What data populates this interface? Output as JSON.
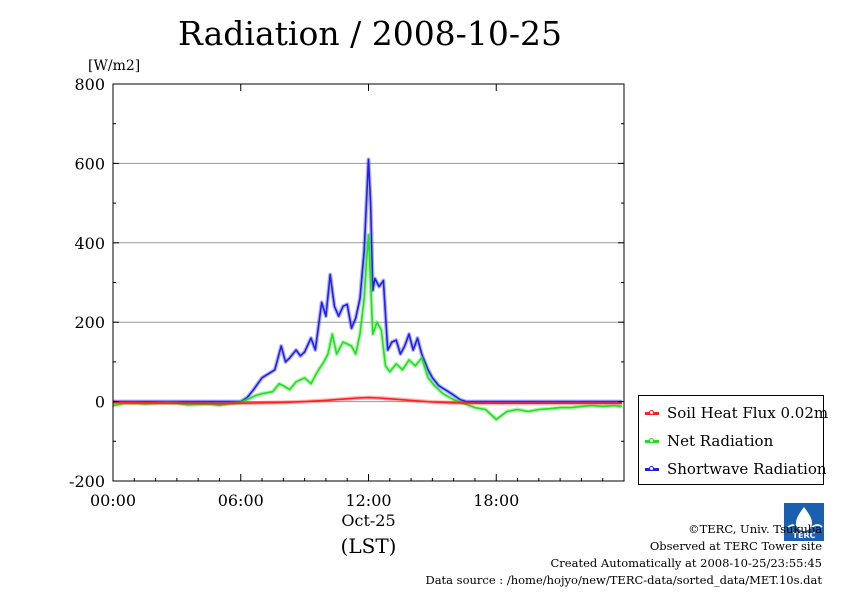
{
  "title": "Radiation / 2008-10-25",
  "chart_data": {
    "type": "line",
    "title": "Radiation / 2008-10-25",
    "ylabel": "[W/m2]",
    "xlabel_date": "Oct-25",
    "xlabel_tz": "(LST)",
    "xlim": [
      0,
      24
    ],
    "ylim": [
      -200,
      800
    ],
    "x_ticks": [
      {
        "value": 0,
        "label": "00:00"
      },
      {
        "value": 6,
        "label": "06:00"
      },
      {
        "value": 12,
        "label": "12:00"
      },
      {
        "value": 18,
        "label": "18:00"
      }
    ],
    "y_ticks": [
      {
        "value": -200,
        "label": "-200"
      },
      {
        "value": 0,
        "label": "0"
      },
      {
        "value": 200,
        "label": "200"
      },
      {
        "value": 400,
        "label": "400"
      },
      {
        "value": 600,
        "label": "600"
      },
      {
        "value": 800,
        "label": "800"
      }
    ],
    "grid": "horizontal",
    "legend_position": "right-bottom",
    "series": [
      {
        "name": "Soil Heat Flux 0.02m",
        "color": "#ff2020",
        "points": [
          [
            0,
            -2
          ],
          [
            1,
            -3
          ],
          [
            2,
            -3
          ],
          [
            3,
            -4
          ],
          [
            4,
            -4
          ],
          [
            5,
            -5
          ],
          [
            6,
            -4
          ],
          [
            7,
            -3
          ],
          [
            8,
            -2
          ],
          [
            9,
            0
          ],
          [
            10,
            3
          ],
          [
            10.5,
            5
          ],
          [
            11,
            7
          ],
          [
            11.5,
            9
          ],
          [
            12,
            10
          ],
          [
            12.5,
            9
          ],
          [
            13,
            7
          ],
          [
            14,
            3
          ],
          [
            15,
            -1
          ],
          [
            16,
            -3
          ],
          [
            17,
            -4
          ],
          [
            18,
            -4
          ],
          [
            19,
            -4
          ],
          [
            20,
            -4
          ],
          [
            21,
            -4
          ],
          [
            22,
            -4
          ],
          [
            23,
            -4
          ],
          [
            23.9,
            -4
          ]
        ]
      },
      {
        "name": "Net Radiation",
        "color": "#20e020",
        "points": [
          [
            0,
            -10
          ],
          [
            0.5,
            -5
          ],
          [
            1,
            -4
          ],
          [
            1.5,
            -6
          ],
          [
            2,
            -5
          ],
          [
            2.5,
            -3
          ],
          [
            3,
            -4
          ],
          [
            3.5,
            -8
          ],
          [
            4,
            -7
          ],
          [
            4.5,
            -6
          ],
          [
            5,
            -9
          ],
          [
            5.5,
            -5
          ],
          [
            6,
            -2
          ],
          [
            6.3,
            5
          ],
          [
            6.7,
            15
          ],
          [
            7,
            20
          ],
          [
            7.5,
            25
          ],
          [
            7.8,
            45
          ],
          [
            8,
            40
          ],
          [
            8.3,
            30
          ],
          [
            8.6,
            50
          ],
          [
            9,
            60
          ],
          [
            9.3,
            45
          ],
          [
            9.6,
            75
          ],
          [
            9.9,
            100
          ],
          [
            10.1,
            120
          ],
          [
            10.3,
            170
          ],
          [
            10.5,
            120
          ],
          [
            10.8,
            150
          ],
          [
            11,
            145
          ],
          [
            11.2,
            140
          ],
          [
            11.4,
            120
          ],
          [
            11.6,
            170
          ],
          [
            11.8,
            260
          ],
          [
            11.9,
            350
          ],
          [
            12,
            420
          ],
          [
            12.1,
            300
          ],
          [
            12.2,
            170
          ],
          [
            12.4,
            200
          ],
          [
            12.6,
            180
          ],
          [
            12.8,
            90
          ],
          [
            13,
            75
          ],
          [
            13.3,
            95
          ],
          [
            13.6,
            80
          ],
          [
            13.9,
            105
          ],
          [
            14.2,
            90
          ],
          [
            14.5,
            110
          ],
          [
            14.8,
            60
          ],
          [
            15.1,
            40
          ],
          [
            15.5,
            20
          ],
          [
            16,
            5
          ],
          [
            16.5,
            -5
          ],
          [
            17,
            -15
          ],
          [
            17.5,
            -20
          ],
          [
            18,
            -45
          ],
          [
            18.5,
            -25
          ],
          [
            19,
            -20
          ],
          [
            19.5,
            -25
          ],
          [
            20,
            -20
          ],
          [
            20.5,
            -18
          ],
          [
            21,
            -15
          ],
          [
            21.5,
            -15
          ],
          [
            22,
            -12
          ],
          [
            22.5,
            -10
          ],
          [
            23,
            -12
          ],
          [
            23.5,
            -10
          ],
          [
            23.9,
            -12
          ]
        ]
      },
      {
        "name": "Shortwave Radiation",
        "color": "#2020ee",
        "points": [
          [
            0,
            0
          ],
          [
            1,
            0
          ],
          [
            2,
            0
          ],
          [
            3,
            0
          ],
          [
            4,
            0
          ],
          [
            5,
            0
          ],
          [
            6,
            0
          ],
          [
            6.3,
            10
          ],
          [
            6.6,
            30
          ],
          [
            7,
            60
          ],
          [
            7.3,
            70
          ],
          [
            7.6,
            80
          ],
          [
            7.9,
            140
          ],
          [
            8.1,
            100
          ],
          [
            8.3,
            110
          ],
          [
            8.6,
            130
          ],
          [
            8.8,
            115
          ],
          [
            9,
            125
          ],
          [
            9.3,
            160
          ],
          [
            9.5,
            130
          ],
          [
            9.8,
            250
          ],
          [
            10,
            215
          ],
          [
            10.2,
            320
          ],
          [
            10.4,
            240
          ],
          [
            10.6,
            215
          ],
          [
            10.8,
            240
          ],
          [
            11,
            245
          ],
          [
            11.2,
            185
          ],
          [
            11.4,
            210
          ],
          [
            11.6,
            260
          ],
          [
            11.8,
            380
          ],
          [
            11.9,
            500
          ],
          [
            12,
            610
          ],
          [
            12.1,
            500
          ],
          [
            12.2,
            280
          ],
          [
            12.3,
            310
          ],
          [
            12.5,
            290
          ],
          [
            12.7,
            305
          ],
          [
            12.9,
            130
          ],
          [
            13.1,
            150
          ],
          [
            13.3,
            155
          ],
          [
            13.5,
            120
          ],
          [
            13.7,
            140
          ],
          [
            13.9,
            170
          ],
          [
            14.1,
            130
          ],
          [
            14.3,
            160
          ],
          [
            14.5,
            120
          ],
          [
            14.8,
            80
          ],
          [
            15,
            60
          ],
          [
            15.3,
            40
          ],
          [
            15.6,
            30
          ],
          [
            15.9,
            20
          ],
          [
            16.3,
            5
          ],
          [
            16.6,
            0
          ],
          [
            17,
            0
          ],
          [
            18,
            0
          ],
          [
            19,
            0
          ],
          [
            20,
            0
          ],
          [
            21,
            0
          ],
          [
            22,
            0
          ],
          [
            23,
            0
          ],
          [
            23.9,
            0
          ]
        ]
      }
    ]
  },
  "footer": {
    "copyright": "©TERC, Univ. Tsukuba",
    "site": "Observed at TERC Tower site",
    "created": "Created Automatically at 2008-10-25/23:55:45",
    "source": "Data source : /home/hojyo/new/TERC-data/sorted_data/MET.10s.dat"
  },
  "logo": {
    "text": "TERC",
    "color": "#1a5fb0"
  }
}
